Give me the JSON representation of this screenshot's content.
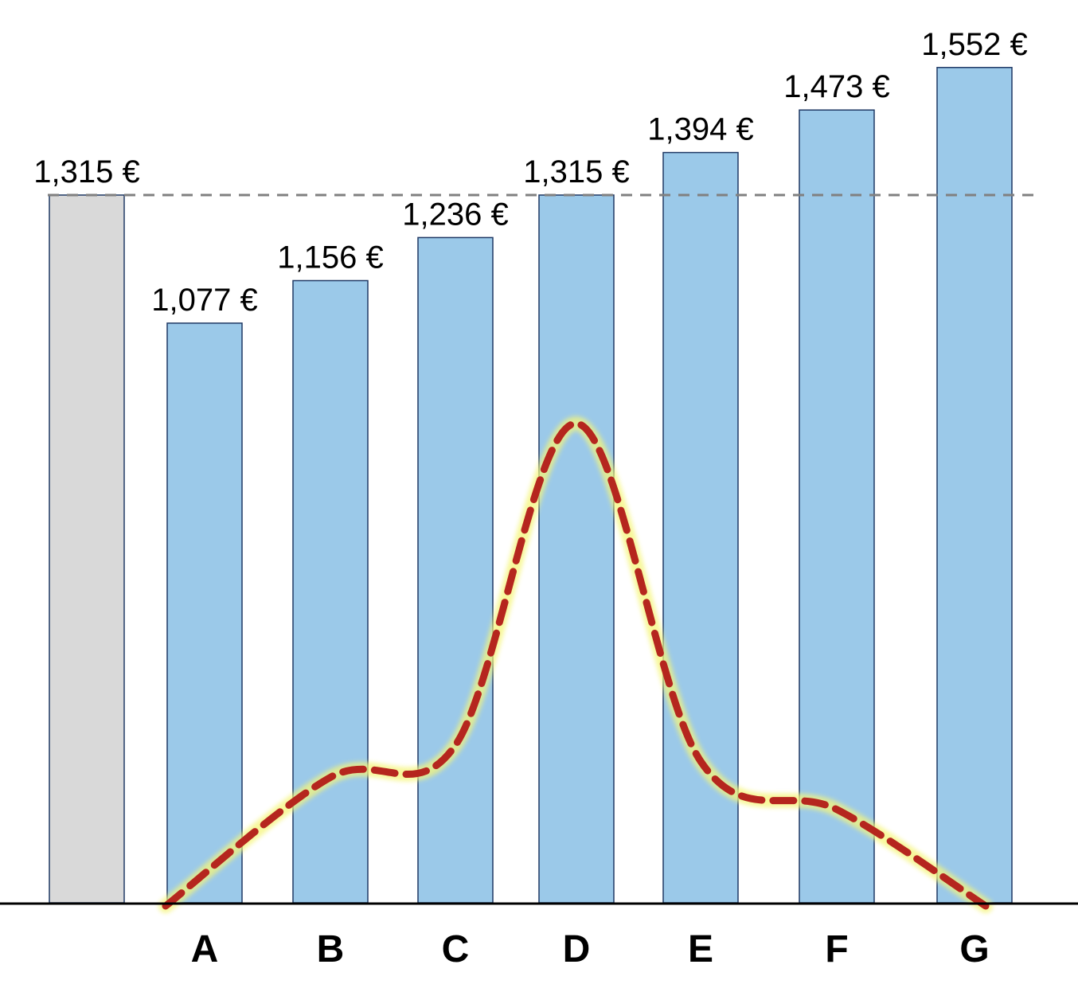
{
  "chart_data": {
    "type": "bar",
    "title": "",
    "xlabel": "",
    "ylabel": "",
    "value_suffix": " €",
    "baseline_bar": {
      "value": 1315,
      "label": "1,315 €",
      "color": "#d9d9d9"
    },
    "categories": [
      "A",
      "B",
      "C",
      "D",
      "E",
      "F",
      "G"
    ],
    "values": [
      1077,
      1156,
      1236,
      1315,
      1394,
      1473,
      1552
    ],
    "value_labels": [
      "1,077 €",
      "1,156 €",
      "1,236 €",
      "1,315 €",
      "1,394 €",
      "1,473 €",
      "1,552 €"
    ],
    "bar_color": "#9bc9e9",
    "bar_edge_color": "#1f3864",
    "reference_line": {
      "value": 1315,
      "style": "dashed",
      "color": "#808080"
    },
    "overlay_curve": {
      "shape": "bell-shaped distribution, peak at D",
      "relative_heights": [
        0.0,
        0.16,
        0.2,
        0.6,
        0.18,
        0.12,
        0.0
      ],
      "color": "#b5261e",
      "glow_color": "#f5f57a",
      "style": "dashed"
    },
    "axis": {
      "baseline": true,
      "ticks": false,
      "grid": false,
      "legend": false
    }
  }
}
